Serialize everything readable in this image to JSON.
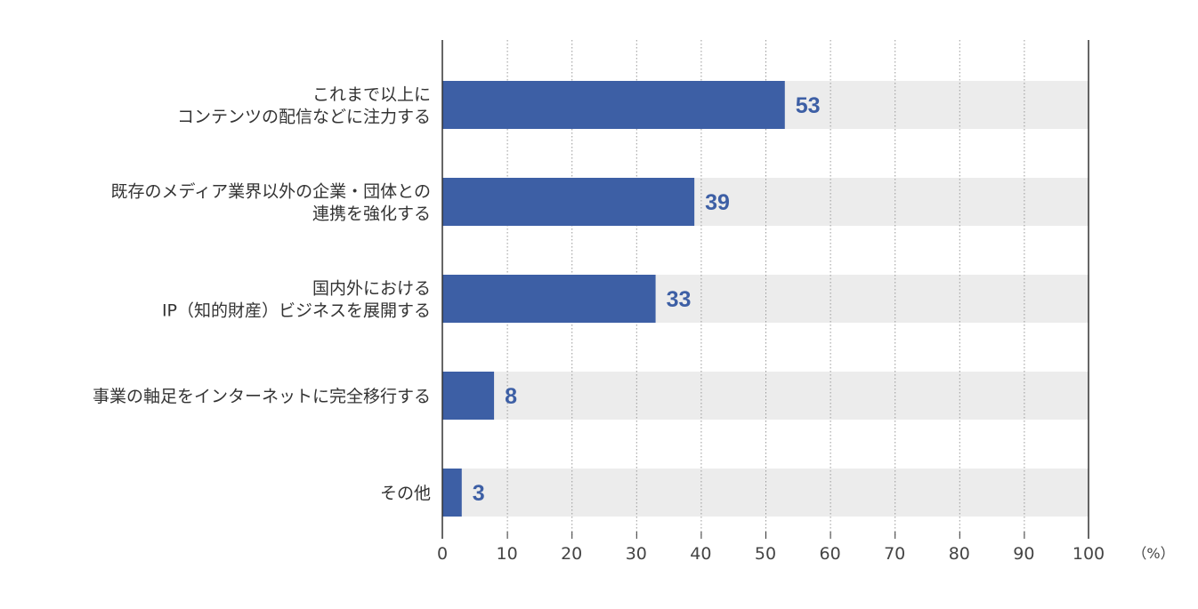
{
  "chart_data": {
    "type": "bar",
    "orientation": "horizontal",
    "categories": [
      [
        "これまで以上に",
        "コンテンツの配信などに注力する"
      ],
      [
        "既存のメディア業界以外の企業・団体との",
        "連携を強化する"
      ],
      [
        "国内外における",
        "IP（知的財産）ビジネスを展開する"
      ],
      [
        "事業の軸足をインターネットに完全移行する"
      ],
      [
        "その他"
      ]
    ],
    "values": [
      53,
      39,
      33,
      8,
      3
    ],
    "value_labels": [
      "53",
      "39",
      "33",
      "8",
      "3"
    ],
    "xlim": [
      0,
      100
    ],
    "xticks": [
      0,
      10,
      20,
      30,
      40,
      50,
      60,
      70,
      80,
      90,
      100
    ],
    "xtick_labels": [
      "0",
      "10",
      "20",
      "30",
      "40",
      "50",
      "60",
      "70",
      "80",
      "90",
      "100"
    ],
    "unit": "（%）",
    "grid": true,
    "colors": {
      "bar": "#3d5fa5",
      "track": "#ececec",
      "value": "#3d5fa5",
      "grid": "#999999",
      "axis": "#333333"
    }
  }
}
